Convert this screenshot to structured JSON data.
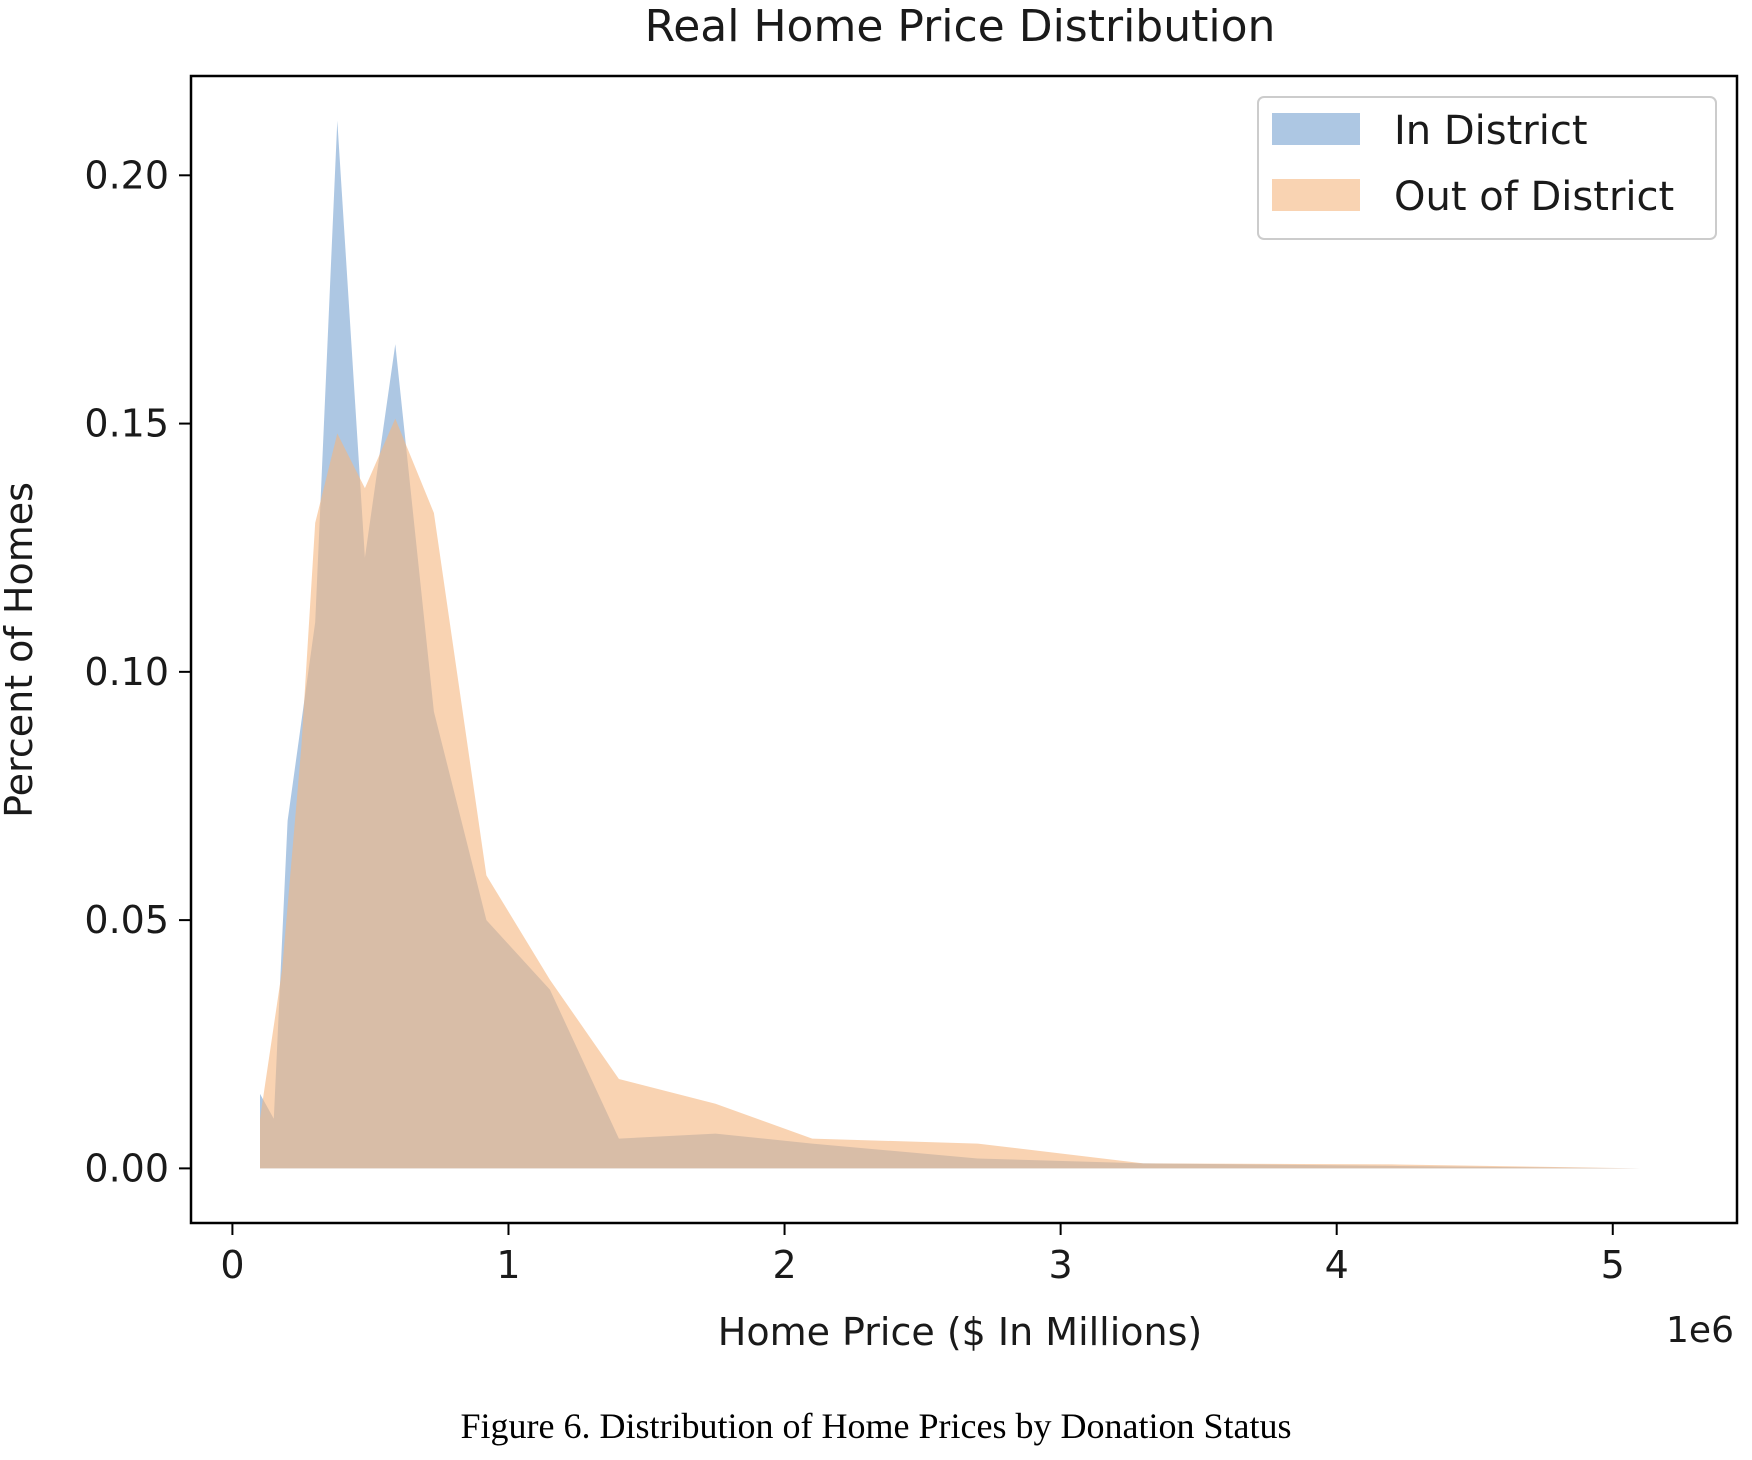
{
  "chart_data": {
    "type": "area",
    "title": "Real Home Price Distribution",
    "xlabel": "Home Price ($ In Millions)",
    "ylabel": "Percent of Homes",
    "x_offset_label": "1e6",
    "xlim": [
      -150000,
      5450000
    ],
    "ylim": [
      -0.011,
      0.22
    ],
    "x_ticks": [
      0,
      1000000,
      2000000,
      3000000,
      4000000,
      5000000
    ],
    "x_tick_labels": [
      "0",
      "1",
      "2",
      "3",
      "4",
      "5"
    ],
    "y_ticks": [
      0.0,
      0.05,
      0.1,
      0.15,
      0.2
    ],
    "y_tick_labels": [
      "0.00",
      "0.05",
      "0.10",
      "0.15",
      "0.20"
    ],
    "grid": false,
    "legend_position": "top-right",
    "series": [
      {
        "name": "In District",
        "color": "#92b4d9",
        "opacity": 0.75,
        "points": [
          [
            100000,
            0.0
          ],
          [
            100000,
            0.015
          ],
          [
            150000,
            0.01
          ],
          [
            200000,
            0.07
          ],
          [
            250000,
            0.09
          ],
          [
            300000,
            0.11
          ],
          [
            380000,
            0.211
          ],
          [
            480000,
            0.123
          ],
          [
            590000,
            0.166
          ],
          [
            730000,
            0.092
          ],
          [
            920000,
            0.05
          ],
          [
            1150000,
            0.036
          ],
          [
            1400000,
            0.006
          ],
          [
            1750000,
            0.007
          ],
          [
            2100000,
            0.005
          ],
          [
            2700000,
            0.002
          ],
          [
            3300000,
            0.001
          ],
          [
            4200000,
            0.0005
          ],
          [
            5100000,
            0.0
          ]
        ]
      },
      {
        "name": "Out of District",
        "color": "#f5b67f",
        "opacity": 0.6,
        "points": [
          [
            100000,
            0.0
          ],
          [
            100000,
            0.01
          ],
          [
            180000,
            0.04
          ],
          [
            250000,
            0.085
          ],
          [
            300000,
            0.13
          ],
          [
            380000,
            0.148
          ],
          [
            480000,
            0.137
          ],
          [
            590000,
            0.151
          ],
          [
            730000,
            0.132
          ],
          [
            920000,
            0.059
          ],
          [
            1150000,
            0.038
          ],
          [
            1400000,
            0.018
          ],
          [
            1750000,
            0.013
          ],
          [
            2100000,
            0.006
          ],
          [
            2700000,
            0.005
          ],
          [
            3300000,
            0.001
          ],
          [
            4200000,
            0.0008
          ],
          [
            5100000,
            0.0
          ]
        ]
      }
    ]
  },
  "caption": "Figure 6. Distribution of Home Prices by Donation Status"
}
